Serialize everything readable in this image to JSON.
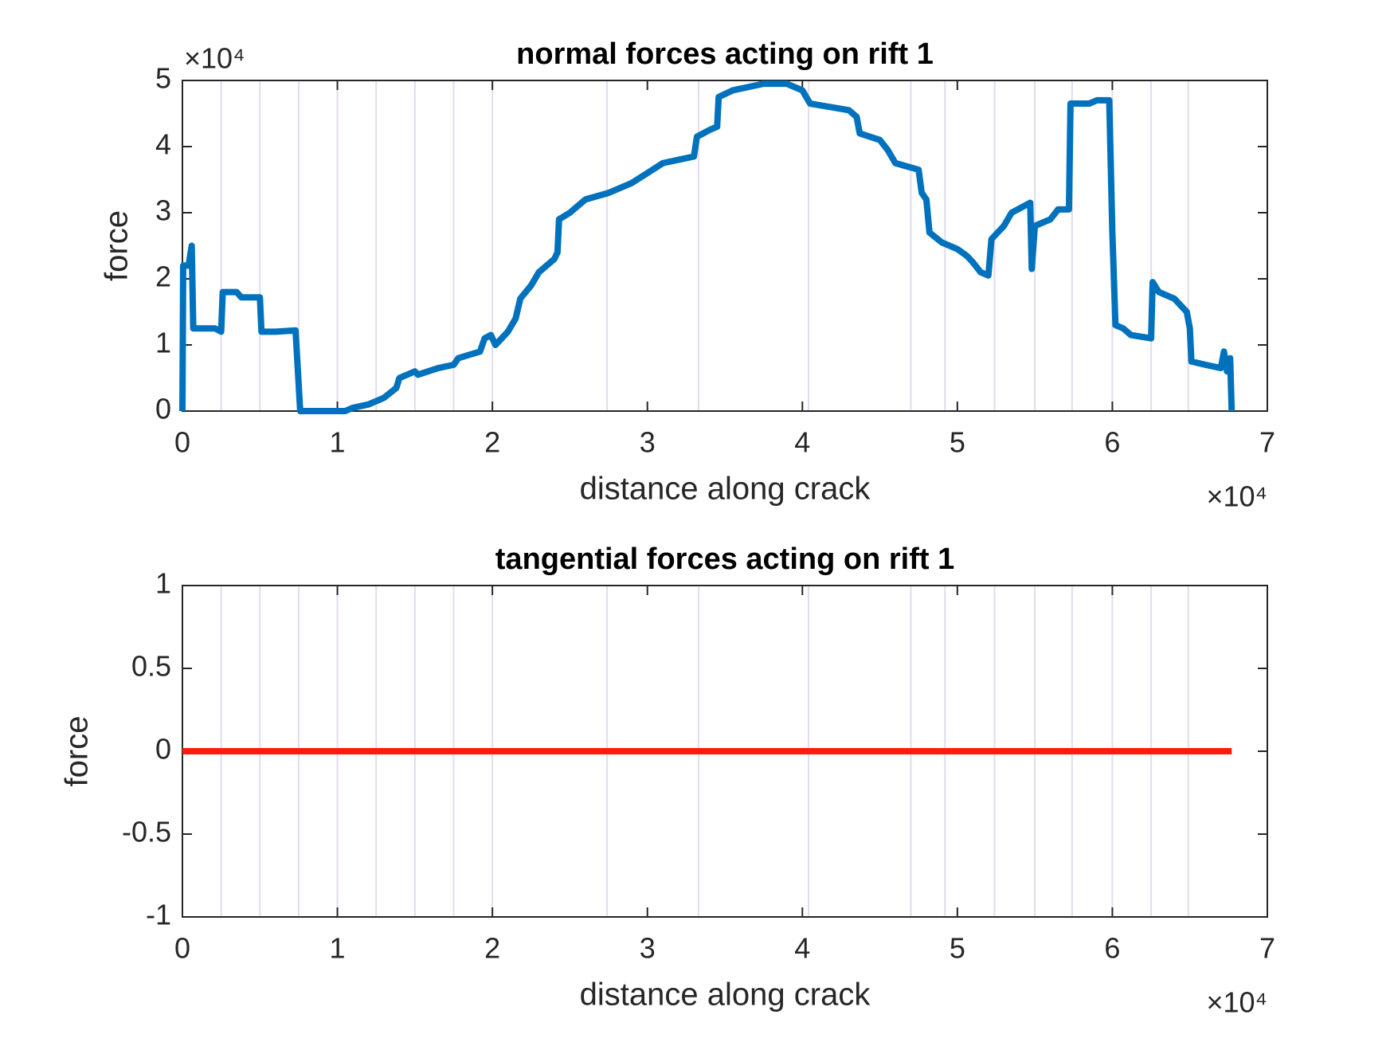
{
  "chart_data": [
    {
      "type": "line",
      "title": "normal forces acting on rift 1",
      "x_label": "distance along crack",
      "y_label": "force",
      "x_multiplier": "×10⁴",
      "y_multiplier": "×10⁴",
      "xlim": [
        0,
        7
      ],
      "xticks": [
        0,
        1,
        2,
        3,
        4,
        5,
        6,
        7
      ],
      "ylim": [
        0,
        5
      ],
      "yticks": [
        0,
        1,
        2,
        3,
        4,
        5
      ],
      "vlines": [
        0.25,
        0.5,
        0.75,
        1.0,
        1.25,
        1.5,
        1.75,
        2.0,
        2.74,
        3.33,
        4.04,
        4.7,
        4.92,
        5.24,
        5.5,
        5.74,
        6.0,
        6.25,
        6.49
      ],
      "vline_color": "#e2dbef",
      "x": [
        0,
        0.005,
        0.04,
        0.06,
        0.07,
        0.21,
        0.25,
        0.26,
        0.35,
        0.38,
        0.5,
        0.51,
        0.6,
        0.73,
        0.76,
        1.05,
        1.1,
        1.2,
        1.3,
        1.38,
        1.4,
        1.5,
        1.52,
        1.65,
        1.75,
        1.78,
        1.92,
        1.95,
        1.99,
        2.02,
        2.1,
        2.15,
        2.18,
        2.25,
        2.3,
        2.4,
        2.42,
        2.43,
        2.5,
        2.6,
        2.75,
        2.9,
        3.0,
        3.1,
        3.3,
        3.32,
        3.4,
        3.45,
        3.46,
        3.55,
        3.75,
        3.9,
        4.0,
        4.05,
        4.3,
        4.35,
        4.37,
        4.5,
        4.55,
        4.6,
        4.75,
        4.77,
        4.8,
        4.82,
        4.9,
        5.0,
        5.06,
        5.1,
        5.15,
        5.2,
        5.22,
        5.3,
        5.35,
        5.43,
        5.47,
        5.48,
        5.5,
        5.6,
        5.65,
        5.72,
        5.73,
        5.85,
        5.9,
        5.98,
        6.0,
        6.02,
        6.07,
        6.12,
        6.25,
        6.26,
        6.3,
        6.4,
        6.48,
        6.5,
        6.51,
        6.6,
        6.7,
        6.72,
        6.74,
        6.76,
        6.77
      ],
      "series": [
        {
          "color": "#0072bd",
          "values": [
            0,
            2.2,
            2.2,
            2.5,
            1.25,
            1.25,
            1.2,
            1.8,
            1.8,
            1.72,
            1.72,
            1.2,
            1.2,
            1.22,
            0,
            0,
            0.05,
            0.1,
            0.2,
            0.35,
            0.5,
            0.6,
            0.55,
            0.65,
            0.7,
            0.8,
            0.9,
            1.1,
            1.15,
            1.0,
            1.2,
            1.4,
            1.7,
            1.9,
            2.1,
            2.3,
            2.4,
            2.9,
            3.0,
            3.2,
            3.3,
            3.45,
            3.6,
            3.75,
            3.85,
            4.15,
            4.25,
            4.3,
            4.75,
            4.85,
            4.95,
            4.95,
            4.85,
            4.65,
            4.55,
            4.45,
            4.2,
            4.1,
            3.95,
            3.75,
            3.65,
            3.3,
            3.2,
            2.7,
            2.55,
            2.45,
            2.35,
            2.25,
            2.1,
            2.05,
            2.6,
            2.8,
            3.0,
            3.1,
            3.15,
            2.15,
            2.8,
            2.9,
            3.05,
            3.05,
            4.65,
            4.65,
            4.7,
            4.7,
            2.7,
            1.3,
            1.25,
            1.15,
            1.1,
            1.95,
            1.8,
            1.7,
            1.5,
            1.25,
            0.75,
            0.7,
            0.65,
            0.9,
            0.6,
            0.8,
            0
          ]
        }
      ]
    },
    {
      "type": "line",
      "title": "tangential forces acting on rift 1",
      "x_label": "distance along crack",
      "y_label": "force",
      "x_multiplier": "×10⁴",
      "xlim": [
        0,
        7
      ],
      "xticks": [
        0,
        1,
        2,
        3,
        4,
        5,
        6,
        7
      ],
      "ylim": [
        -1,
        1
      ],
      "yticks": [
        -1,
        -0.5,
        0,
        0.5,
        1
      ],
      "vlines": [
        0.25,
        0.5,
        0.75,
        1.0,
        1.25,
        1.5,
        1.75,
        2.0,
        2.74,
        3.33,
        4.04,
        4.7,
        4.92,
        5.24,
        5.5,
        5.74,
        6.0,
        6.25,
        6.49
      ],
      "vline_color": "#e2dbef",
      "x": [
        0,
        6.77
      ],
      "series": [
        {
          "color": "#ff1a0d",
          "values": [
            0,
            0
          ]
        }
      ]
    }
  ]
}
